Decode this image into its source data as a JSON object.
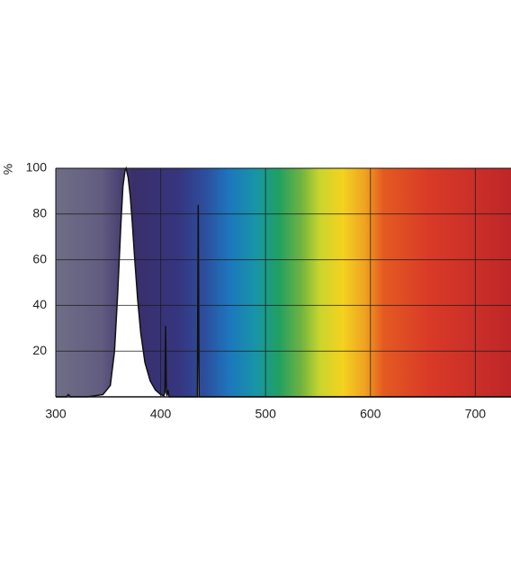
{
  "chart_data": {
    "type": "line",
    "y_label": "%",
    "series": [
      {
        "name": "spectrum",
        "color": "#111111",
        "x": [
          300,
          310,
          312,
          314,
          330,
          345,
          352,
          356,
          359,
          362,
          364,
          366,
          367,
          369,
          371,
          373,
          375,
          378,
          381,
          385,
          390,
          395,
          400,
          403,
          404,
          404.7,
          405.4,
          406,
          407,
          408,
          420,
          435,
          435.8,
          436.6,
          440,
          734
        ],
        "values": [
          0,
          0,
          1,
          0,
          0,
          1,
          5,
          20,
          45,
          75,
          92,
          99,
          100,
          96,
          88,
          76,
          62,
          43,
          28,
          15,
          7,
          3,
          1,
          0.5,
          2,
          31,
          2,
          0.5,
          3,
          0,
          0,
          0,
          84,
          0,
          0,
          0
        ]
      }
    ],
    "xlim": [
      300,
      734
    ],
    "ylim": [
      0,
      100
    ],
    "xticks": [
      300,
      400,
      500,
      600,
      700
    ],
    "yticks": [
      20,
      40,
      60,
      80,
      100
    ],
    "grid": true
  }
}
